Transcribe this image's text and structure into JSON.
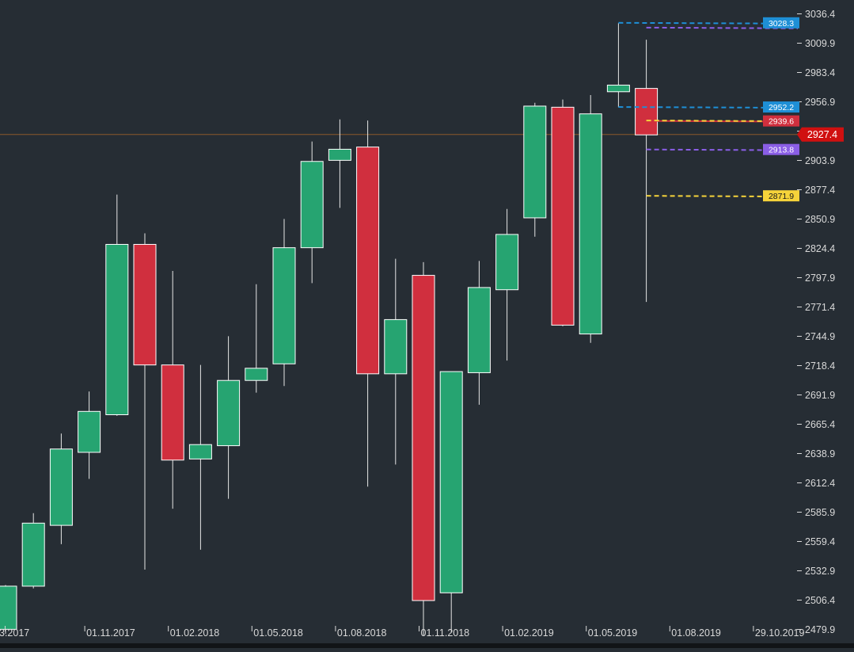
{
  "theme": {
    "background": "#262d34",
    "bullish": "#26a471",
    "bearish": "#d02f3e",
    "wick": "#e6e6e6",
    "axis_text": "#d9d9d9",
    "current_line": "#8b5a2b"
  },
  "chart_data": {
    "type": "candlestick",
    "ylim": [
      2466.0,
      3043.0
    ],
    "y_ticks": [
      3036.4,
      3009.9,
      2983.4,
      2956.9,
      2930.4,
      2903.9,
      2877.4,
      2850.9,
      2824.4,
      2797.9,
      2771.4,
      2744.9,
      2718.4,
      2691.9,
      2665.4,
      2638.9,
      2612.4,
      2585.9,
      2559.4,
      2532.9,
      2506.4,
      2479.9
    ],
    "y_tick_labels": [
      "3036.4",
      "3009.9",
      "2983.4",
      "2956.9",
      "",
      "2903.9",
      "2877.4",
      "2850.9",
      "2824.4",
      "2797.9",
      "2771.4",
      "2744.9",
      "2718.4",
      "2691.9",
      "2665.4",
      "2638.9",
      "2612.4",
      "2585.9",
      "2559.4",
      "2532.9",
      "2506.4",
      "2479.9"
    ],
    "x_labels": [
      "3.2017",
      "01.11.2017",
      "01.02.2018",
      "01.05.2018",
      "01.08.2018",
      "01.11.2018",
      "01.02.2019",
      "01.05.2019",
      "01.08.2019",
      "29.10.2019"
    ],
    "x_label_candle_index": [
      0,
      3,
      6,
      9,
      12,
      15,
      18,
      21,
      24,
      27
    ],
    "candles": [
      {
        "o": 2480.0,
        "h": 2520.0,
        "l": 2476.0,
        "c": 2519.0
      },
      {
        "o": 2519.0,
        "h": 2585.0,
        "l": 2517.0,
        "c": 2576.0
      },
      {
        "o": 2574.0,
        "h": 2657.0,
        "l": 2557.0,
        "c": 2643.0
      },
      {
        "o": 2640.0,
        "h": 2695.0,
        "l": 2616.0,
        "c": 2677.0
      },
      {
        "o": 2674.0,
        "h": 2873.0,
        "l": 2673.0,
        "c": 2828.0
      },
      {
        "o": 2828.0,
        "h": 2838.0,
        "l": 2534.0,
        "c": 2719.0
      },
      {
        "o": 2719.0,
        "h": 2804.0,
        "l": 2589.0,
        "c": 2633.0
      },
      {
        "o": 2634.0,
        "h": 2719.0,
        "l": 2552.0,
        "c": 2647.0
      },
      {
        "o": 2646.0,
        "h": 2745.0,
        "l": 2598.0,
        "c": 2705.0
      },
      {
        "o": 2705.0,
        "h": 2792.0,
        "l": 2694.0,
        "c": 2716.0
      },
      {
        "o": 2720.0,
        "h": 2851.0,
        "l": 2700.0,
        "c": 2825.0
      },
      {
        "o": 2825.0,
        "h": 2921.0,
        "l": 2793.0,
        "c": 2903.0
      },
      {
        "o": 2904.0,
        "h": 2941.0,
        "l": 2861.0,
        "c": 2914.0
      },
      {
        "o": 2916.0,
        "h": 2940.0,
        "l": 2609.0,
        "c": 2711.0
      },
      {
        "o": 2711.0,
        "h": 2815.0,
        "l": 2629.0,
        "c": 2760.0
      },
      {
        "o": 2800.0,
        "h": 2812.0,
        "l": 2474.0,
        "c": 2506.0
      },
      {
        "o": 2513.0,
        "h": 2711.0,
        "l": 2477.0,
        "c": 2713.0
      },
      {
        "o": 2712.0,
        "h": 2813.0,
        "l": 2683.0,
        "c": 2789.0
      },
      {
        "o": 2787.0,
        "h": 2860.0,
        "l": 2723.0,
        "c": 2837.0
      },
      {
        "o": 2852.0,
        "h": 2956.0,
        "l": 2835.0,
        "c": 2953.0
      },
      {
        "o": 2952.0,
        "h": 2959.0,
        "l": 2754.0,
        "c": 2755.0
      },
      {
        "o": 2747.0,
        "h": 2963.0,
        "l": 2739.0,
        "c": 2946.0
      },
      {
        "o": 2966.0,
        "h": 3028.0,
        "l": 2952.0,
        "c": 2972.0
      },
      {
        "o": 2969.0,
        "h": 3013.0,
        "l": 2776.0,
        "c": 2927.0
      }
    ],
    "current_price": {
      "value": 2927.4,
      "label": "2927.4",
      "color": "#d01010"
    },
    "levels": [
      {
        "value": 3028.3,
        "label": "3028.3",
        "color": "#1e8fd6",
        "style": "dashed",
        "start_candle": 22
      },
      {
        "value": 3024.0,
        "label": "",
        "color": "#8a5ee6",
        "style": "dashed",
        "start_candle": 23
      },
      {
        "value": 2952.2,
        "label": "2952.2",
        "color": "#1e8fd6",
        "style": "dashed",
        "start_candle": 22
      },
      {
        "value": 2939.6,
        "label": "2939.6",
        "color": "#d02f3e",
        "style": "solid",
        "start_candle": 23
      },
      {
        "value": 2940.0,
        "label": "",
        "color": "#f5d33a",
        "style": "dashed",
        "start_candle": 23
      },
      {
        "value": 2913.8,
        "label": "2913.8",
        "color": "#8a5ee6",
        "style": "dashed",
        "start_candle": 23
      },
      {
        "value": 2871.9,
        "label": "2871.9",
        "color": "#f5d33a",
        "style": "dashed",
        "start_candle": 23
      }
    ]
  }
}
